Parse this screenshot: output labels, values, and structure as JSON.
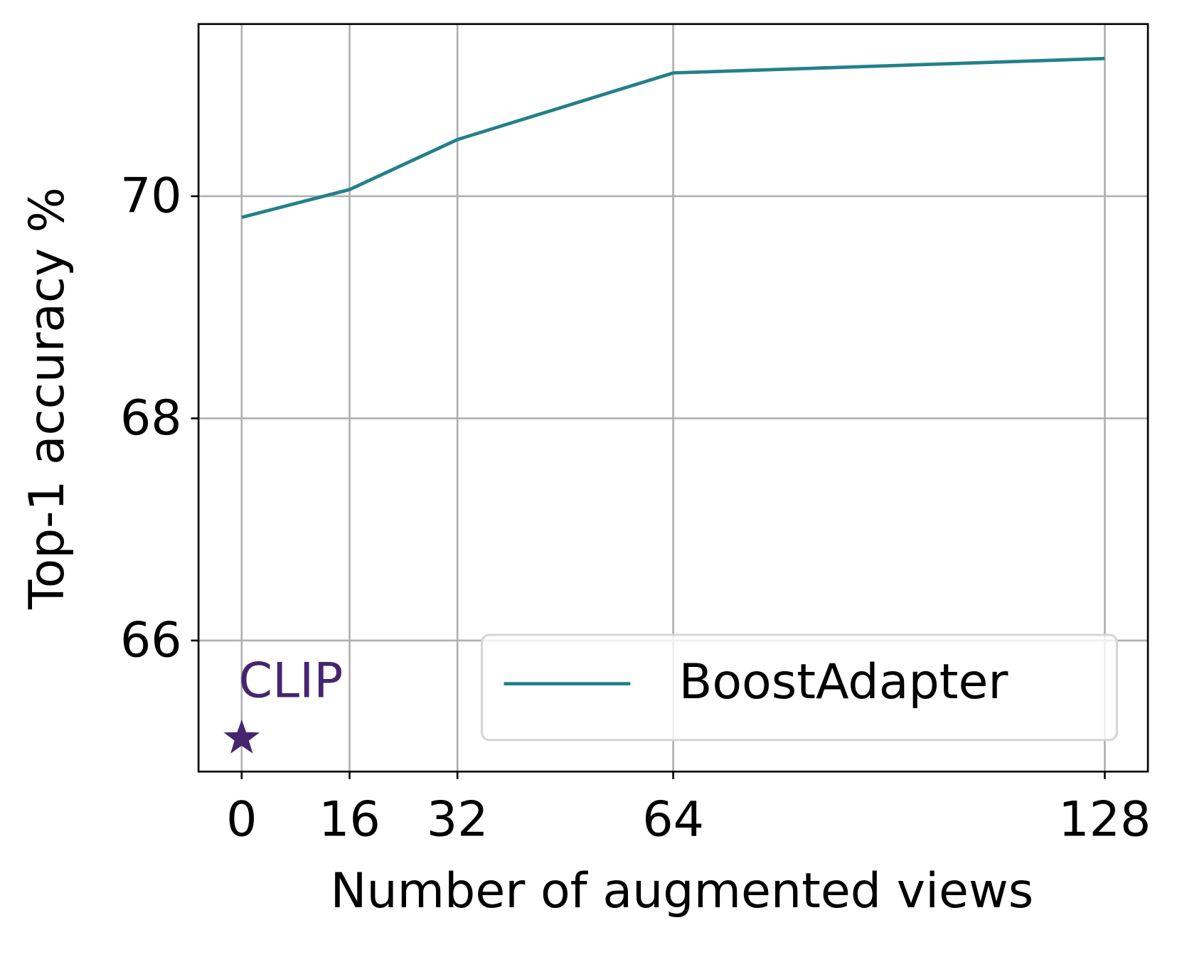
{
  "chart_data": {
    "type": "line",
    "x_label": "Number of augmented views",
    "y_label": "Top-1 accuracy %",
    "x": [
      0,
      16,
      32,
      64,
      128
    ],
    "series": [
      {
        "name": "BoostAdapter",
        "color": "#23808b",
        "values": [
          69.81,
          70.06,
          70.51,
          71.11,
          71.24
        ]
      }
    ],
    "points": [
      {
        "name": "CLIP",
        "x": 0,
        "y": 65.12,
        "color": "#46256e"
      }
    ],
    "xlim": [
      -6.4,
      134.4
    ],
    "ylim": [
      64.82,
      71.55
    ],
    "xticks": [
      0,
      16,
      32,
      64,
      128
    ],
    "yticks": [
      66,
      68,
      70
    ],
    "grid": true,
    "legend": "lower right"
  }
}
